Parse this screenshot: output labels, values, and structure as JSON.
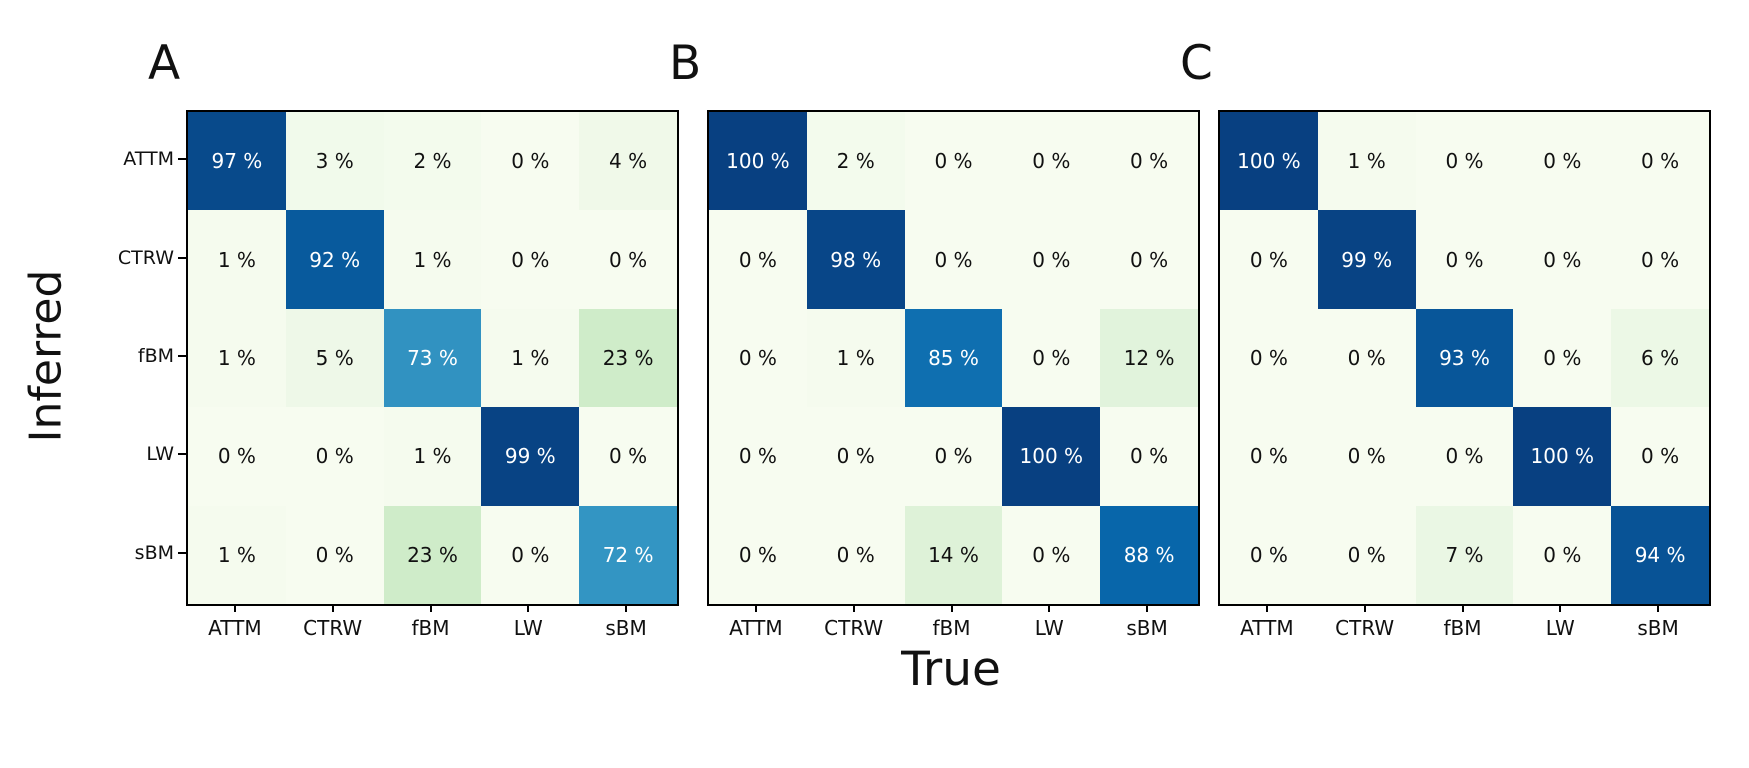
{
  "figure": {
    "ylabel": "Inferred",
    "xlabel": "True",
    "categories": [
      "ATTM",
      "CTRW",
      "fBM",
      "LW",
      "sBM"
    ],
    "value_unit": "%",
    "colors": {
      "colormap_name": "GnBu",
      "colormap_stops": [
        "#f7fcf0",
        "#e0f3db",
        "#ccebc5",
        "#a8ddb5",
        "#7bccc4",
        "#4eb3d3",
        "#2b8cbe",
        "#0868ac",
        "#084081"
      ],
      "cell_text_dark": "#111111",
      "cell_text_light": "#ffffff",
      "border": "#000000"
    }
  },
  "chart_data": [
    {
      "type": "heatmap",
      "title": "A",
      "xlabel": "True",
      "ylabel": "Inferred",
      "rows": [
        "ATTM",
        "CTRW",
        "fBM",
        "LW",
        "sBM"
      ],
      "cols": [
        "ATTM",
        "CTRW",
        "fBM",
        "LW",
        "sBM"
      ],
      "unit": "%",
      "value_range": [
        0,
        100
      ],
      "show_row_labels": true,
      "values": [
        [
          97,
          3,
          2,
          0,
          4
        ],
        [
          1,
          92,
          1,
          0,
          0
        ],
        [
          1,
          5,
          73,
          1,
          23
        ],
        [
          0,
          0,
          1,
          99,
          0
        ],
        [
          1,
          0,
          23,
          0,
          72
        ]
      ]
    },
    {
      "type": "heatmap",
      "title": "B",
      "xlabel": "True",
      "ylabel": "Inferred",
      "rows": [
        "ATTM",
        "CTRW",
        "fBM",
        "LW",
        "sBM"
      ],
      "cols": [
        "ATTM",
        "CTRW",
        "fBM",
        "LW",
        "sBM"
      ],
      "unit": "%",
      "value_range": [
        0,
        100
      ],
      "show_row_labels": false,
      "values": [
        [
          100,
          2,
          0,
          0,
          0
        ],
        [
          0,
          98,
          0,
          0,
          0
        ],
        [
          0,
          1,
          85,
          0,
          12
        ],
        [
          0,
          0,
          0,
          100,
          0
        ],
        [
          0,
          0,
          14,
          0,
          88
        ]
      ]
    },
    {
      "type": "heatmap",
      "title": "C",
      "xlabel": "True",
      "ylabel": "Inferred",
      "rows": [
        "ATTM",
        "CTRW",
        "fBM",
        "LW",
        "sBM"
      ],
      "cols": [
        "ATTM",
        "CTRW",
        "fBM",
        "LW",
        "sBM"
      ],
      "unit": "%",
      "value_range": [
        0,
        100
      ],
      "show_row_labels": false,
      "values": [
        [
          100,
          1,
          0,
          0,
          0
        ],
        [
          0,
          99,
          0,
          0,
          0
        ],
        [
          0,
          0,
          93,
          0,
          6
        ],
        [
          0,
          0,
          0,
          100,
          0
        ],
        [
          0,
          0,
          7,
          0,
          94
        ]
      ]
    }
  ]
}
